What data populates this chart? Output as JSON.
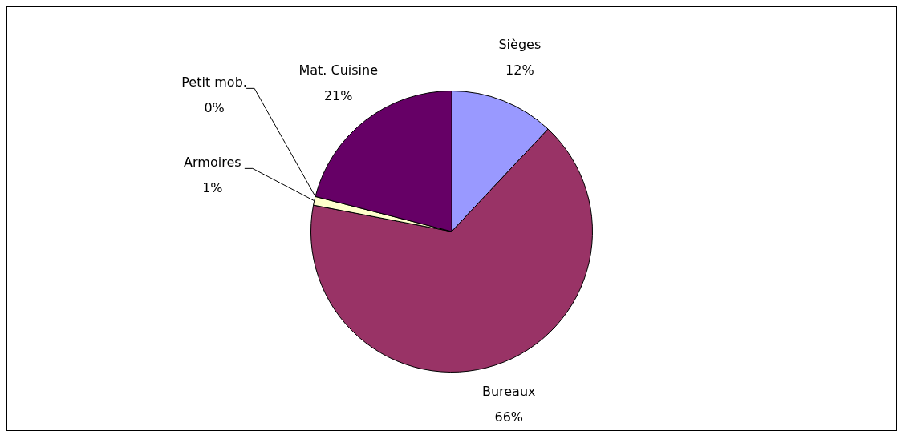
{
  "chart_data": {
    "type": "pie",
    "categories": [
      "Sièges",
      "Bureaux",
      "Armoires",
      "Petit mob.",
      "Mat. Cuisine"
    ],
    "values": [
      12,
      66,
      1,
      0,
      21
    ],
    "colors": [
      "#9999ff",
      "#993366",
      "#ffffcc",
      "#ccffff",
      "#660066"
    ],
    "value_labels": [
      "12%",
      "66%",
      "1%",
      "0%",
      "21%"
    ],
    "legend": false
  }
}
